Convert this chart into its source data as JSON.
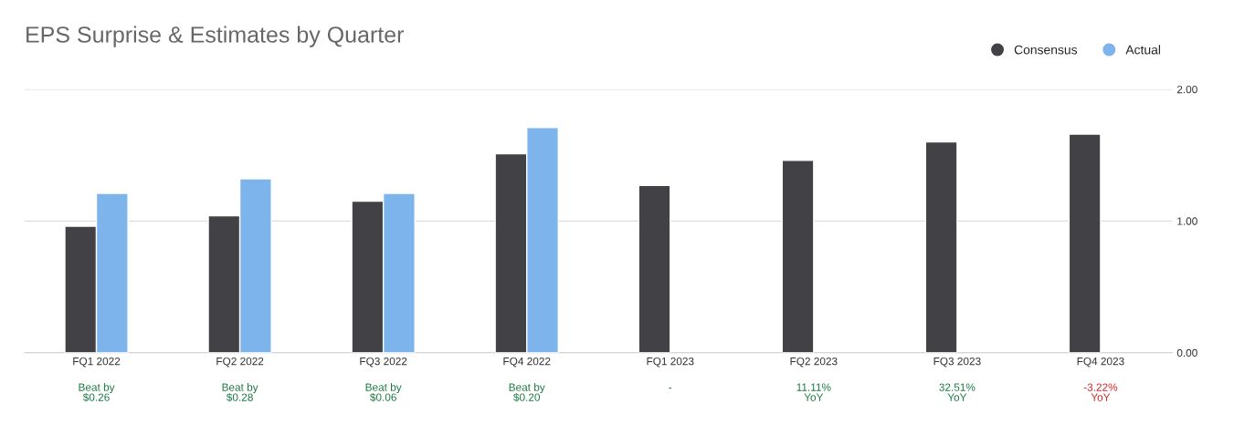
{
  "chart_data": {
    "type": "bar",
    "title": "EPS Surprise & Estimates by Quarter",
    "categories": [
      "FQ1 2022",
      "FQ2 2022",
      "FQ3 2022",
      "FQ4 2022",
      "FQ1 2023",
      "FQ2 2023",
      "FQ3 2023",
      "FQ4 2023"
    ],
    "series": [
      {
        "name": "Consensus",
        "color": "#424145",
        "values": [
          0.96,
          1.04,
          1.15,
          1.51,
          1.27,
          1.46,
          1.6,
          1.66
        ]
      },
      {
        "name": "Actual",
        "color": "#7cb4eb",
        "values": [
          1.21,
          1.32,
          1.21,
          1.71,
          null,
          null,
          null,
          null
        ]
      }
    ],
    "ylim": [
      0,
      2.0
    ],
    "yticks": [
      {
        "value": 0,
        "label": "0.00"
      },
      {
        "value": 1,
        "label": "1.00"
      },
      {
        "value": 2,
        "label": "2.00"
      }
    ],
    "grid": "y",
    "legend": "top right",
    "annotations": [
      "Beat by\n$0.26",
      "Beat by\n$0.28",
      "Beat by\n$0.06",
      "Beat by\n$0.20",
      "-",
      "11.11%\nYoY",
      "32.51%\nYoY",
      "-3.22%\nYoY"
    ]
  }
}
